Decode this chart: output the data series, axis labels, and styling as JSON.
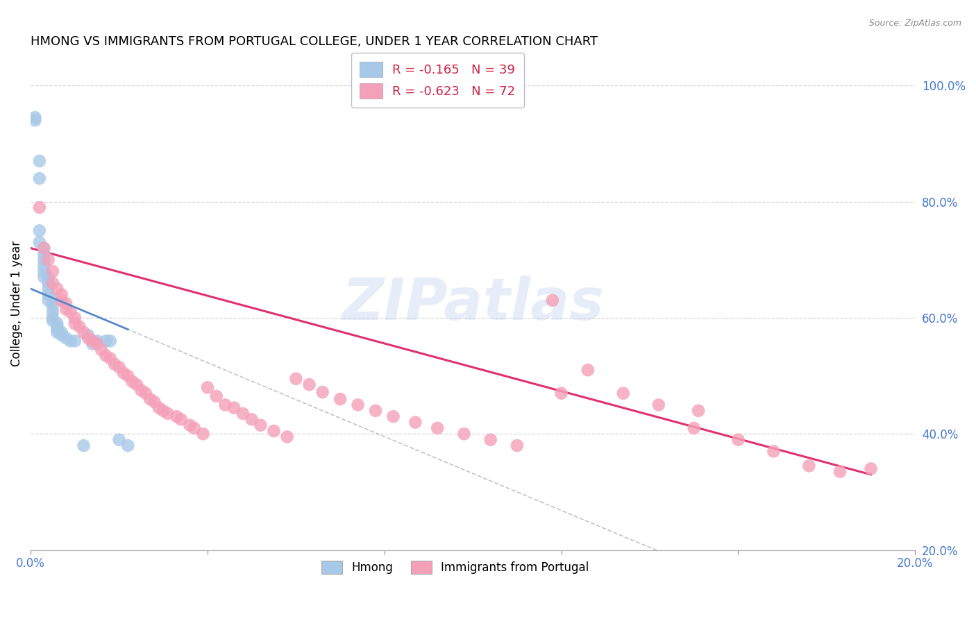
{
  "title": "HMONG VS IMMIGRANTS FROM PORTUGAL COLLEGE, UNDER 1 YEAR CORRELATION CHART",
  "source": "Source: ZipAtlas.com",
  "ylabel": "College, Under 1 year",
  "xlim": [
    0.0,
    0.2
  ],
  "ylim": [
    0.2,
    1.05
  ],
  "hmong_R": -0.165,
  "hmong_N": 39,
  "portugal_R": -0.623,
  "portugal_N": 72,
  "hmong_color": "#a8c8e8",
  "portugal_color": "#f4a0b8",
  "hmong_line_color": "#5588cc",
  "portugal_line_color": "#e03070",
  "grid_color": "#cccccc",
  "yticks_right": [
    1.0,
    0.8,
    0.6,
    0.4,
    0.2
  ],
  "ytick_right_labels": [
    "100.0%",
    "80.0%",
    "60.0%",
    "40.0%",
    "20.0%"
  ],
  "hmong_line_x0": 0.0,
  "hmong_line_y0": 0.65,
  "hmong_line_x1": 0.022,
  "hmong_line_y1": 0.58,
  "portugal_line_x0": 0.0,
  "portugal_line_y0": 0.72,
  "portugal_line_x1": 0.19,
  "portugal_line_y1": 0.33,
  "hmong_x": [
    0.001,
    0.001,
    0.002,
    0.002,
    0.002,
    0.002,
    0.003,
    0.003,
    0.003,
    0.003,
    0.003,
    0.003,
    0.004,
    0.004,
    0.004,
    0.004,
    0.004,
    0.005,
    0.005,
    0.005,
    0.005,
    0.005,
    0.006,
    0.006,
    0.006,
    0.006,
    0.007,
    0.007,
    0.008,
    0.009,
    0.01,
    0.012,
    0.013,
    0.014,
    0.015,
    0.017,
    0.018,
    0.02,
    0.022
  ],
  "hmong_y": [
    0.945,
    0.94,
    0.87,
    0.84,
    0.75,
    0.73,
    0.72,
    0.71,
    0.7,
    0.69,
    0.68,
    0.67,
    0.67,
    0.66,
    0.65,
    0.64,
    0.63,
    0.63,
    0.62,
    0.61,
    0.6,
    0.595,
    0.59,
    0.585,
    0.58,
    0.575,
    0.575,
    0.57,
    0.565,
    0.56,
    0.56,
    0.38,
    0.57,
    0.555,
    0.56,
    0.56,
    0.56,
    0.39,
    0.38
  ],
  "portugal_x": [
    0.002,
    0.003,
    0.004,
    0.005,
    0.005,
    0.006,
    0.007,
    0.007,
    0.008,
    0.008,
    0.009,
    0.01,
    0.01,
    0.011,
    0.012,
    0.013,
    0.014,
    0.015,
    0.016,
    0.017,
    0.018,
    0.019,
    0.02,
    0.021,
    0.022,
    0.023,
    0.024,
    0.025,
    0.026,
    0.027,
    0.028,
    0.029,
    0.03,
    0.031,
    0.033,
    0.034,
    0.036,
    0.037,
    0.039,
    0.04,
    0.042,
    0.044,
    0.046,
    0.048,
    0.05,
    0.052,
    0.055,
    0.058,
    0.06,
    0.063,
    0.066,
    0.07,
    0.074,
    0.078,
    0.082,
    0.087,
    0.092,
    0.098,
    0.104,
    0.11,
    0.118,
    0.126,
    0.134,
    0.142,
    0.151,
    0.16,
    0.168,
    0.176,
    0.183,
    0.19,
    0.12,
    0.15
  ],
  "portugal_y": [
    0.79,
    0.72,
    0.7,
    0.68,
    0.66,
    0.65,
    0.64,
    0.63,
    0.625,
    0.615,
    0.61,
    0.6,
    0.59,
    0.585,
    0.575,
    0.565,
    0.56,
    0.555,
    0.545,
    0.535,
    0.53,
    0.52,
    0.515,
    0.505,
    0.5,
    0.49,
    0.485,
    0.475,
    0.47,
    0.46,
    0.455,
    0.445,
    0.44,
    0.435,
    0.43,
    0.425,
    0.415,
    0.41,
    0.4,
    0.48,
    0.465,
    0.45,
    0.445,
    0.435,
    0.425,
    0.415,
    0.405,
    0.395,
    0.495,
    0.485,
    0.472,
    0.46,
    0.45,
    0.44,
    0.43,
    0.42,
    0.41,
    0.4,
    0.39,
    0.38,
    0.63,
    0.51,
    0.47,
    0.45,
    0.44,
    0.39,
    0.37,
    0.345,
    0.335,
    0.34,
    0.47,
    0.41
  ]
}
